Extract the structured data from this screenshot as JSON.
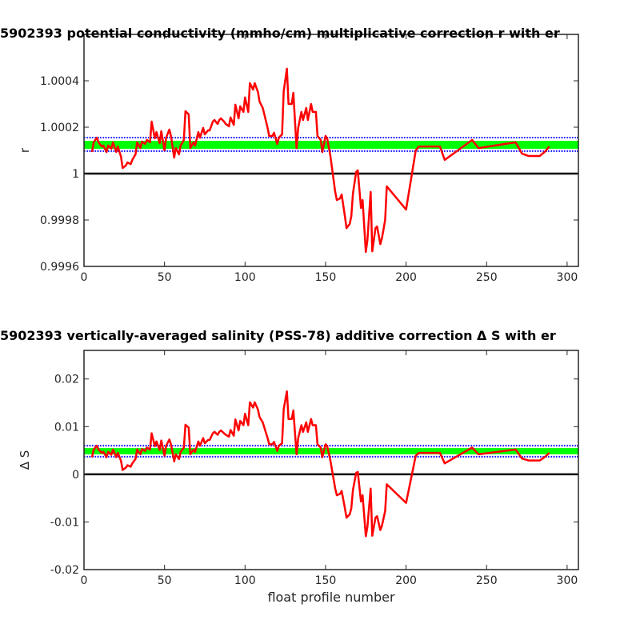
{
  "chart_data": [
    {
      "type": "line",
      "title": "5902393 potential conductivity (mmho/cm) multiplicative correction r with er",
      "ylabel": "r",
      "xlim": [
        0,
        307
      ],
      "xticks": [
        0,
        50,
        100,
        150,
        200,
        250,
        300
      ],
      "ylim": [
        0.9996,
        1.0006
      ],
      "yticks": [
        0.9996,
        0.9998,
        1,
        1.0002,
        1.0004
      ],
      "grid": false,
      "reference_line": {
        "value": 1,
        "color": "#000000"
      },
      "band": {
        "color": "#00ff00",
        "lower": 1.000107,
        "upper": 1.000141
      },
      "error_lines": {
        "color": "#0000ff",
        "values": [
          1.000155,
          1.000097
        ]
      },
      "x": [
        5,
        6,
        8,
        9,
        11,
        12,
        14,
        15,
        17,
        18,
        20,
        21,
        23,
        24,
        26,
        27,
        29,
        30,
        32,
        33,
        35,
        36,
        38,
        39,
        41,
        42,
        44,
        45,
        47,
        48,
        50,
        51,
        53,
        54,
        56,
        57,
        59,
        60,
        62,
        63,
        65,
        66,
        68,
        69,
        71,
        72,
        74,
        75,
        77,
        78,
        80,
        81,
        83,
        84,
        85,
        87,
        88,
        90,
        91,
        93,
        94,
        96,
        97,
        99,
        100,
        102,
        103,
        105,
        106,
        108,
        109,
        111,
        112,
        114,
        115,
        117,
        118,
        120,
        121,
        123,
        124,
        126,
        127,
        129,
        130,
        132,
        133,
        135,
        136,
        138,
        139,
        141,
        142,
        144,
        145,
        147,
        148,
        150,
        151,
        153,
        154,
        156,
        157,
        159,
        160,
        162,
        163,
        165,
        166,
        167,
        169,
        170,
        172,
        173,
        175,
        176,
        178,
        179,
        181,
        182,
        184,
        185,
        187,
        188,
        200,
        206,
        208,
        221,
        224,
        241,
        245,
        268,
        272,
        276,
        283,
        286,
        289
      ],
      "series": [
        {
          "color": "#ff0000",
          "values": [
            1.000093,
            1.000135,
            1.000155,
            1.000135,
            1.000117,
            1.000121,
            1.000093,
            1.000121,
            1.000107,
            1.000135,
            1.000093,
            1.000117,
            1.000072,
            1.000024,
            1.000035,
            1.000048,
            1.000041,
            1.000059,
            1.000083,
            1.000135,
            1.00011,
            1.000138,
            1.000128,
            1.000145,
            1.000135,
            1.000224,
            1.000152,
            1.000179,
            1.000131,
            1.000183,
            1.0001,
            1.000155,
            1.00019,
            1.000162,
            1.000069,
            1.00011,
            1.000083,
            1.000121,
            1.000145,
            1.000269,
            1.000255,
            1.00011,
            1.000135,
            1.000121,
            1.000179,
            1.000155,
            1.000197,
            1.000169,
            1.000186,
            1.000186,
            1.000224,
            1.000231,
            1.000214,
            1.000231,
            1.000238,
            1.000224,
            1.000214,
            1.000204,
            1.000242,
            1.00021,
            1.000297,
            1.000238,
            1.00029,
            1.000266,
            1.000328,
            1.000266,
            1.00039,
            1.000362,
            1.00039,
            1.000352,
            1.000311,
            1.000283,
            1.000255,
            1.000197,
            1.000162,
            1.000162,
            1.000176,
            1.000128,
            1.000155,
            1.000169,
            1.000355,
            1.000452,
            1.0003,
            1.0003,
            1.000348,
            1.00011,
            1.000197,
            1.000266,
            1.000231,
            1.000283,
            1.000231,
            1.0003,
            1.000266,
            1.000266,
            1.000162,
            1.000145,
            1.000093,
            1.000162,
            1.000152,
            1.000076,
            1.000024,
            0.999921,
            0.999886,
            0.999893,
            0.99991,
            0.999817,
            0.999765,
            0.999783,
            0.999817,
            0.999914,
            1.000007,
            1.000014,
            0.999852,
            0.999886,
            0.999662,
            0.999714,
            0.999921,
            0.999665,
            0.999765,
            0.999772,
            0.999696,
            0.999721,
            0.9998,
            0.999945,
            0.999845,
            1.0001,
            1.000117,
            1.000117,
            1.000059,
            1.000145,
            1.00011,
            1.000135,
            1.000086,
            1.000076,
            1.000076,
            1.000093,
            1.000117
          ]
        }
      ]
    },
    {
      "type": "line",
      "title": "5902393 vertically-averaged salinity (PSS-78) additive correction Δ S with er",
      "ylabel": "Δ S",
      "xlabel": "float profile number",
      "xlim": [
        0,
        307
      ],
      "xticks": [
        0,
        50,
        100,
        150,
        200,
        250,
        300
      ],
      "ylim": [
        -0.02,
        0.026
      ],
      "yticks": [
        -0.02,
        -0.01,
        0,
        0.01,
        0.02
      ],
      "grid": false,
      "reference_line": {
        "value": 0,
        "color": "#000000"
      },
      "band": {
        "color": "#00ff00",
        "lower": 0.0042,
        "upper": 0.0055
      },
      "error_lines": {
        "color": "#0000ff",
        "values": [
          0.006,
          0.0037
        ]
      },
      "x": [
        5,
        6,
        8,
        9,
        11,
        12,
        14,
        15,
        17,
        18,
        20,
        21,
        23,
        24,
        26,
        27,
        29,
        30,
        32,
        33,
        35,
        36,
        38,
        39,
        41,
        42,
        44,
        45,
        47,
        48,
        50,
        51,
        53,
        54,
        56,
        57,
        59,
        60,
        62,
        63,
        65,
        66,
        68,
        69,
        71,
        72,
        74,
        75,
        77,
        78,
        80,
        81,
        83,
        84,
        85,
        87,
        88,
        90,
        91,
        93,
        94,
        96,
        97,
        99,
        100,
        102,
        103,
        105,
        106,
        108,
        109,
        111,
        112,
        114,
        115,
        117,
        118,
        120,
        121,
        123,
        124,
        126,
        127,
        129,
        130,
        132,
        133,
        135,
        136,
        138,
        139,
        141,
        142,
        144,
        145,
        147,
        148,
        150,
        151,
        153,
        154,
        156,
        157,
        159,
        160,
        162,
        163,
        165,
        166,
        167,
        169,
        170,
        172,
        173,
        175,
        176,
        178,
        179,
        181,
        182,
        184,
        185,
        187,
        188,
        200,
        206,
        208,
        221,
        224,
        241,
        245,
        268,
        272,
        276,
        283,
        286,
        289
      ],
      "series": [
        {
          "color": "#ff0000",
          "values": [
            0.0036,
            0.0052,
            0.006,
            0.0052,
            0.0045,
            0.0047,
            0.0036,
            0.0047,
            0.0041,
            0.0052,
            0.0036,
            0.0045,
            0.0028,
            0.0009,
            0.0014,
            0.0019,
            0.0016,
            0.0023,
            0.0032,
            0.0052,
            0.0042,
            0.0053,
            0.0049,
            0.0056,
            0.0052,
            0.0086,
            0.0059,
            0.0069,
            0.0051,
            0.0071,
            0.0039,
            0.006,
            0.0073,
            0.0063,
            0.0027,
            0.0042,
            0.0032,
            0.0047,
            0.0056,
            0.0104,
            0.0098,
            0.0042,
            0.0052,
            0.0047,
            0.0069,
            0.006,
            0.0076,
            0.0065,
            0.0072,
            0.0072,
            0.0086,
            0.0089,
            0.0083,
            0.0089,
            0.0092,
            0.0086,
            0.0083,
            0.0079,
            0.0093,
            0.0081,
            0.0115,
            0.0092,
            0.0112,
            0.0103,
            0.0127,
            0.0103,
            0.0151,
            0.014,
            0.0151,
            0.0136,
            0.012,
            0.0109,
            0.0098,
            0.0076,
            0.0063,
            0.0063,
            0.0068,
            0.0049,
            0.006,
            0.0065,
            0.0137,
            0.0174,
            0.0116,
            0.0116,
            0.0134,
            0.0042,
            0.0076,
            0.0103,
            0.0089,
            0.0109,
            0.0089,
            0.0116,
            0.0103,
            0.0103,
            0.0063,
            0.0056,
            0.0036,
            0.0063,
            0.0059,
            0.0029,
            0.0009,
            -0.003,
            -0.0044,
            -0.0041,
            -0.0035,
            -0.0071,
            -0.0091,
            -0.0084,
            -0.0071,
            -0.0033,
            0.0003,
            0.0005,
            -0.0057,
            -0.0044,
            -0.013,
            -0.011,
            -0.003,
            -0.0129,
            -0.0091,
            -0.0088,
            -0.0117,
            -0.0108,
            -0.0077,
            -0.0021,
            -0.006,
            0.0039,
            0.0045,
            0.0045,
            0.0023,
            0.0056,
            0.0042,
            0.0052,
            0.0033,
            0.0029,
            0.0029,
            0.0036,
            0.0045
          ]
        }
      ]
    }
  ]
}
